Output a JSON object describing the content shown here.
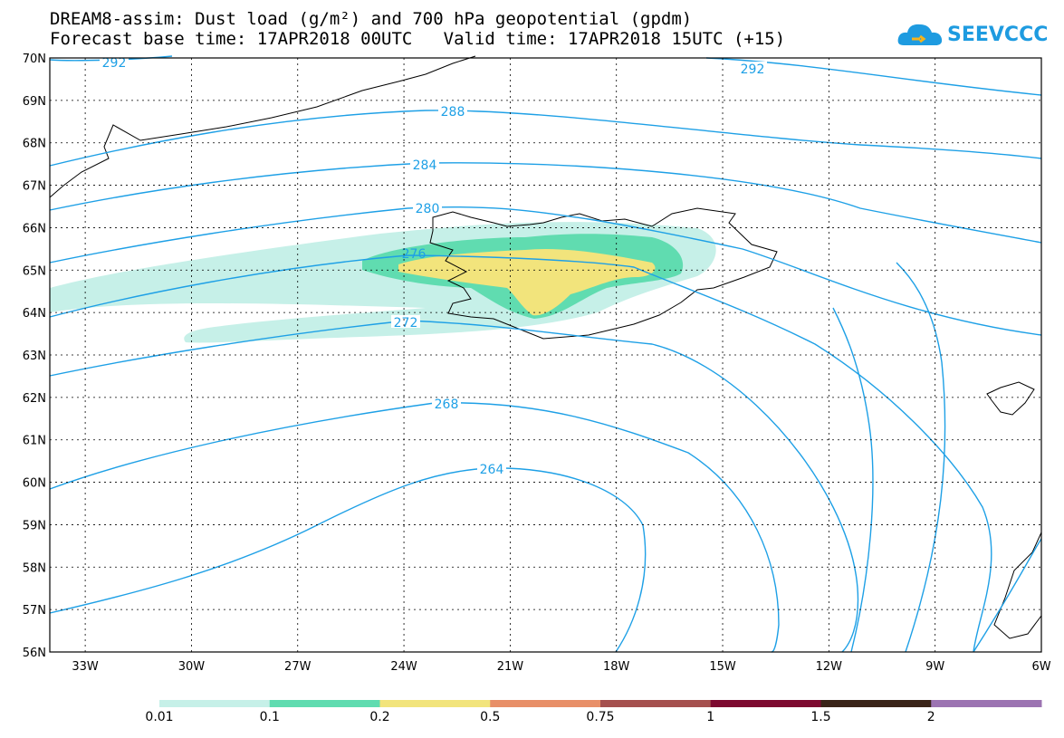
{
  "title": {
    "line1": "DREAM8-assim: Dust load (g/m²) and 700 hPa geopotential (gpdm)",
    "line2": "Forecast base time: 17APR2018 00UTC   Valid time: 17APR2018 15UTC (+15)"
  },
  "logo": {
    "text": "SEEVCCC",
    "icon": "cloud-logo-icon"
  },
  "map": {
    "lat_labels": [
      "70N",
      "69N",
      "68N",
      "67N",
      "66N",
      "65N",
      "64N",
      "63N",
      "62N",
      "61N",
      "60N",
      "59N",
      "58N",
      "57N",
      "56N"
    ],
    "lon_labels": [
      "33W",
      "30W",
      "27W",
      "24W",
      "21W",
      "18W",
      "15W",
      "12W",
      "9W",
      "6W"
    ],
    "contour_labels": [
      "292",
      "292",
      "288",
      "284",
      "280",
      "276",
      "272",
      "268",
      "264"
    ],
    "contour_color": "#1ea0e6"
  },
  "legend": {
    "thresholds": [
      "0.01",
      "0.1",
      "0.2",
      "0.5",
      "0.75",
      "1",
      "1.5",
      "2"
    ],
    "colors": [
      "#c6f0e8",
      "#60dcb0",
      "#f2e47c",
      "#e88f68",
      "#a5504e",
      "#7d0a30",
      "#3a2418",
      "#9c74b2"
    ]
  }
}
